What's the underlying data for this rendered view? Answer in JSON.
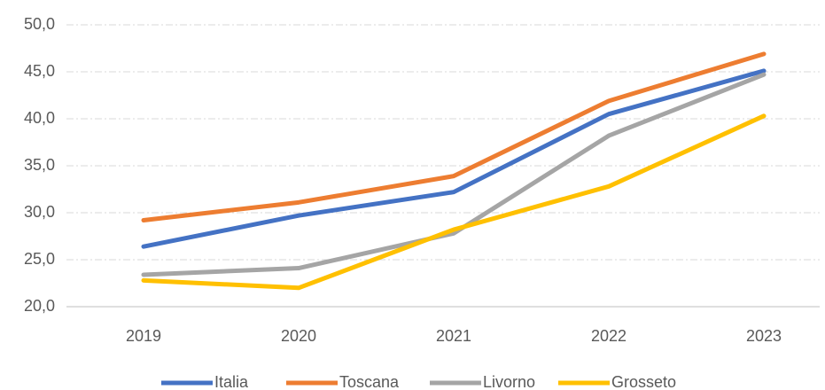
{
  "chart_data": {
    "type": "line",
    "categories": [
      "2019",
      "2020",
      "2021",
      "2022",
      "2023"
    ],
    "series": [
      {
        "name": "Italia",
        "color": "#4472c4",
        "values": [
          26.4,
          29.7,
          32.2,
          40.5,
          45.1
        ]
      },
      {
        "name": "Toscana",
        "color": "#ed7d31",
        "values": [
          29.2,
          31.1,
          33.9,
          41.9,
          46.9
        ]
      },
      {
        "name": "Livorno",
        "color": "#a5a5a5",
        "values": [
          23.4,
          24.1,
          27.8,
          38.2,
          44.7
        ]
      },
      {
        "name": "Grosseto",
        "color": "#ffc000",
        "values": [
          22.8,
          22.0,
          28.2,
          32.8,
          40.3
        ]
      }
    ],
    "ylim": [
      20,
      50
    ],
    "yticks": [
      {
        "value": 20,
        "label": "20,0"
      },
      {
        "value": 25,
        "label": "25,0"
      },
      {
        "value": 30,
        "label": "30,0"
      },
      {
        "value": 35,
        "label": "35,0"
      },
      {
        "value": 40,
        "label": "40,0"
      },
      {
        "value": 45,
        "label": "45,0"
      },
      {
        "value": 50,
        "label": "50,0"
      }
    ],
    "grid": true,
    "legend": "bottom"
  }
}
